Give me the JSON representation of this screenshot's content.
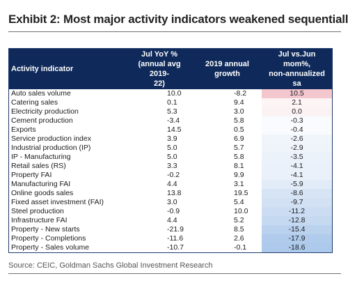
{
  "title": "Exhibit 2: Most major activity indicators weakened sequentially",
  "table": {
    "columns": [
      "Activity indicator",
      "Jul YoY % (annual avg 2019-22)",
      "2019 annual growth",
      "Jul vs.Jun mom%, non-annualized sa"
    ],
    "column_lines": [
      [
        "Activity indicator"
      ],
      [
        "Jul YoY %",
        "(annual avg 2019-",
        "22)"
      ],
      [
        "2019 annual",
        "growth"
      ],
      [
        "Jul vs.Jun mom%,",
        "non-annualized sa"
      ]
    ],
    "rows": [
      {
        "indicator": "Auto sales volume",
        "yoy": "10.0",
        "growth_2019": "-8.2",
        "mom": "10.5",
        "mom_value": 10.5
      },
      {
        "indicator": "Catering sales",
        "yoy": "0.1",
        "growth_2019": "9.4",
        "mom": "2.1",
        "mom_value": 2.1
      },
      {
        "indicator": "Electricity production",
        "yoy": "5.3",
        "growth_2019": "3.0",
        "mom": "0.0",
        "mom_value": 0.0
      },
      {
        "indicator": "Cement production",
        "yoy": "-3.4",
        "growth_2019": "5.8",
        "mom": "-0.3",
        "mom_value": -0.3
      },
      {
        "indicator": "Exports",
        "yoy": "14.5",
        "growth_2019": "0.5",
        "mom": "-0.4",
        "mom_value": -0.4
      },
      {
        "indicator": "Service production index",
        "yoy": "3.9",
        "growth_2019": "6.9",
        "mom": "-2.6",
        "mom_value": -2.6
      },
      {
        "indicator": "Industrial production (IP)",
        "yoy": "5.0",
        "growth_2019": "5.7",
        "mom": "-2.9",
        "mom_value": -2.9
      },
      {
        "indicator": "IP - Manufacturing",
        "yoy": "5.0",
        "growth_2019": "5.8",
        "mom": "-3.5",
        "mom_value": -3.5
      },
      {
        "indicator": "Retail sales (RS)",
        "yoy": "3.3",
        "growth_2019": "8.1",
        "mom": "-4.1",
        "mom_value": -4.1
      },
      {
        "indicator": "Property FAI",
        "yoy": "-0.2",
        "growth_2019": "9.9",
        "mom": "-4.1",
        "mom_value": -4.1
      },
      {
        "indicator": "Manufacturing FAI",
        "yoy": "4.4",
        "growth_2019": "3.1",
        "mom": "-5.9",
        "mom_value": -5.9
      },
      {
        "indicator": "Online goods sales",
        "yoy": "13.8",
        "growth_2019": "19.5",
        "mom": "-8.6",
        "mom_value": -8.6
      },
      {
        "indicator": "Fixed asset investment (FAI)",
        "yoy": "3.0",
        "growth_2019": "5.4",
        "mom": "-9.7",
        "mom_value": -9.7
      },
      {
        "indicator": "Steel production",
        "yoy": "-0.9",
        "growth_2019": "10.0",
        "mom": "-11.2",
        "mom_value": -11.2
      },
      {
        "indicator": "Infrastructure FAI",
        "yoy": "4.4",
        "growth_2019": "5.2",
        "mom": "-12.8",
        "mom_value": -12.8
      },
      {
        "indicator": "Property - New starts",
        "yoy": "-21.9",
        "growth_2019": "8.5",
        "mom": "-15.4",
        "mom_value": -15.4
      },
      {
        "indicator": "Property - Completions",
        "yoy": "-11.6",
        "growth_2019": "2.6",
        "mom": "-17.9",
        "mom_value": -17.9
      },
      {
        "indicator": "Property - Sales volume",
        "yoy": "-10.7",
        "growth_2019": "-0.1",
        "mom": "-18.6",
        "mom_value": -18.6
      }
    ]
  },
  "heatmap_colors": {
    "positive": "#f4c7cf",
    "negative": "#a9c6ea",
    "header_bg": "#0f2a5a"
  },
  "source": "Source: CEIC, Goldman Sachs Global Investment Research"
}
